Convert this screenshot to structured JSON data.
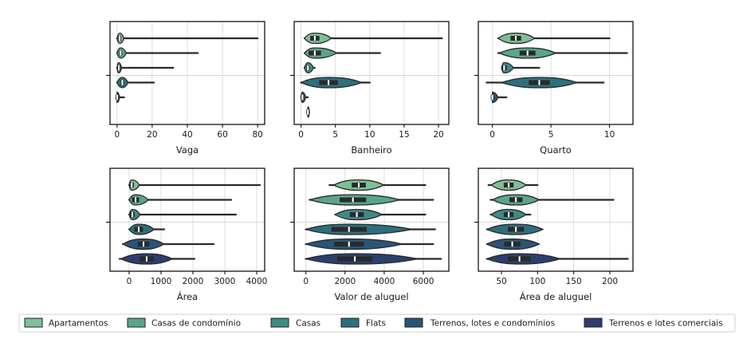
{
  "legend": {
    "entries": [
      {
        "label": "Apartamentos",
        "color": "#7fbf95"
      },
      {
        "label": "Casas de condomínio",
        "color": "#5aa58a"
      },
      {
        "label": "Casas",
        "color": "#3f8a84"
      },
      {
        "label": "Flats",
        "color": "#2e6f7d"
      },
      {
        "label": "Terrenos, lotes e condomínios",
        "color": "#2a5577"
      },
      {
        "label": "Terrenos e lotes comerciais",
        "color": "#2b3f6e"
      }
    ]
  },
  "chart_data": [
    {
      "type": "violin",
      "xlabel": "Vaga",
      "xlim": [
        -4,
        84
      ],
      "xticks": [
        0,
        20,
        40,
        60,
        80
      ],
      "grid": true,
      "series": [
        {
          "name": "Apartamentos",
          "min": 0,
          "max": 80,
          "median": 1.5,
          "spread": 1.5
        },
        {
          "name": "Casas de condomínio",
          "min": 0,
          "max": 46,
          "median": 2,
          "spread": 2
        },
        {
          "name": "Casas",
          "min": 0,
          "max": 32,
          "median": 1,
          "spread": 1
        },
        {
          "name": "Flats",
          "min": 0,
          "max": 21,
          "median": 3,
          "spread": 2
        },
        {
          "name": "Terrenos, lotes e condomínios",
          "min": 0,
          "max": 4,
          "median": 0,
          "spread": 0.5
        },
        {
          "name": "Terrenos e lotes comerciais",
          "min": null,
          "max": null,
          "median": null,
          "spread": null
        }
      ]
    },
    {
      "type": "violin",
      "xlabel": "Banheiro",
      "xlim": [
        -1,
        21.5
      ],
      "xticks": [
        0,
        5,
        10,
        15,
        20
      ],
      "grid": true,
      "series": [
        {
          "name": "Apartamentos",
          "min": 0.5,
          "max": 20.5,
          "median": 2,
          "spread": 1.5
        },
        {
          "name": "Casas de condomínio",
          "min": 0.5,
          "max": 11.5,
          "median": 2,
          "spread": 2
        },
        {
          "name": "Casas",
          "min": 0.5,
          "max": 2,
          "median": 1,
          "spread": 0.5
        },
        {
          "name": "Flats",
          "min": 0,
          "max": 10,
          "median": 4,
          "spread": 3
        },
        {
          "name": "Terrenos, lotes e condomínios",
          "min": 0,
          "max": 1,
          "median": 0.2,
          "spread": 0.3
        },
        {
          "name": "Terrenos e lotes comerciais",
          "min": 1,
          "max": 1,
          "median": 1,
          "spread": 0.2
        }
      ]
    },
    {
      "type": "violin",
      "xlabel": "Quarto",
      "xlim": [
        -1.2,
        12
      ],
      "xticks": [
        0,
        5,
        10
      ],
      "grid": true,
      "series": [
        {
          "name": "Apartamentos",
          "min": 0.5,
          "max": 10,
          "median": 2,
          "spread": 1
        },
        {
          "name": "Casas de condomínio",
          "min": 0.5,
          "max": 11.5,
          "median": 3,
          "spread": 1.5
        },
        {
          "name": "Casas",
          "min": 0.8,
          "max": 4,
          "median": 1,
          "spread": 0.5
        },
        {
          "name": "Flats",
          "min": -0.5,
          "max": 9.5,
          "median": 4,
          "spread": 2
        },
        {
          "name": "Terrenos, lotes e condomínios",
          "min": 0,
          "max": 1.2,
          "median": 0,
          "spread": 0.3
        },
        {
          "name": "Terrenos e lotes comerciais",
          "min": null,
          "max": null,
          "median": null,
          "spread": null
        }
      ]
    },
    {
      "type": "violin",
      "xlabel": "Área",
      "xlim": [
        -600,
        4250
      ],
      "xticks": [
        0,
        1000,
        2000,
        3000,
        4000
      ],
      "grid": true,
      "series": [
        {
          "name": "Apartamentos",
          "min": 0,
          "max": 4100,
          "median": 80,
          "spread": 150
        },
        {
          "name": "Casas de condomínio",
          "min": 0,
          "max": 3200,
          "median": 200,
          "spread": 250
        },
        {
          "name": "Casas",
          "min": 0,
          "max": 3350,
          "median": 100,
          "spread": 150
        },
        {
          "name": "Flats",
          "min": 0,
          "max": 1100,
          "median": 300,
          "spread": 300
        },
        {
          "name": "Terrenos, lotes e condomínios",
          "min": -200,
          "max": 2650,
          "median": 450,
          "spread": 400
        },
        {
          "name": "Terrenos e lotes comerciais",
          "min": -300,
          "max": 2050,
          "median": 550,
          "spread": 500
        }
      ]
    },
    {
      "type": "violin",
      "xlabel": "Valor de aluguel",
      "xlim": [
        -600,
        7300
      ],
      "xticks": [
        0,
        2000,
        4000,
        6000
      ],
      "grid": true,
      "series": [
        {
          "name": "Apartamentos",
          "min": 1200,
          "max": 6100,
          "median": 2700,
          "spread": 800
        },
        {
          "name": "Casas de condomínio",
          "min": 200,
          "max": 6500,
          "median": 2400,
          "spread": 1500
        },
        {
          "name": "Casas",
          "min": 1500,
          "max": 6100,
          "median": 2600,
          "spread": 800
        },
        {
          "name": "Flats",
          "min": 0,
          "max": 6600,
          "median": 2200,
          "spread": 2000
        },
        {
          "name": "Terrenos, lotes e condomínios",
          "min": 0,
          "max": 6500,
          "median": 2200,
          "spread": 1700
        },
        {
          "name": "Terrenos e lotes comerciais",
          "min": 0,
          "max": 6900,
          "median": 2500,
          "spread": 2000
        }
      ]
    },
    {
      "type": "violin",
      "xlabel": "Área de aluguel",
      "xlim": [
        18,
        232
      ],
      "xticks": [
        50,
        100,
        150,
        200
      ],
      "grid": true,
      "series": [
        {
          "name": "Apartamentos",
          "min": 32,
          "max": 100,
          "median": 60,
          "spread": 15
        },
        {
          "name": "Casas de condomínio",
          "min": 35,
          "max": 205,
          "median": 70,
          "spread": 20
        },
        {
          "name": "Casas",
          "min": 35,
          "max": 90,
          "median": 60,
          "spread": 15
        },
        {
          "name": "Flats",
          "min": 30,
          "max": 105,
          "median": 70,
          "spread": 25
        },
        {
          "name": "Terrenos, lotes e condomínios",
          "min": 30,
          "max": 100,
          "median": 65,
          "spread": 25
        },
        {
          "name": "Terrenos e lotes comerciais",
          "min": 30,
          "max": 225,
          "median": 75,
          "spread": 35
        }
      ]
    }
  ]
}
